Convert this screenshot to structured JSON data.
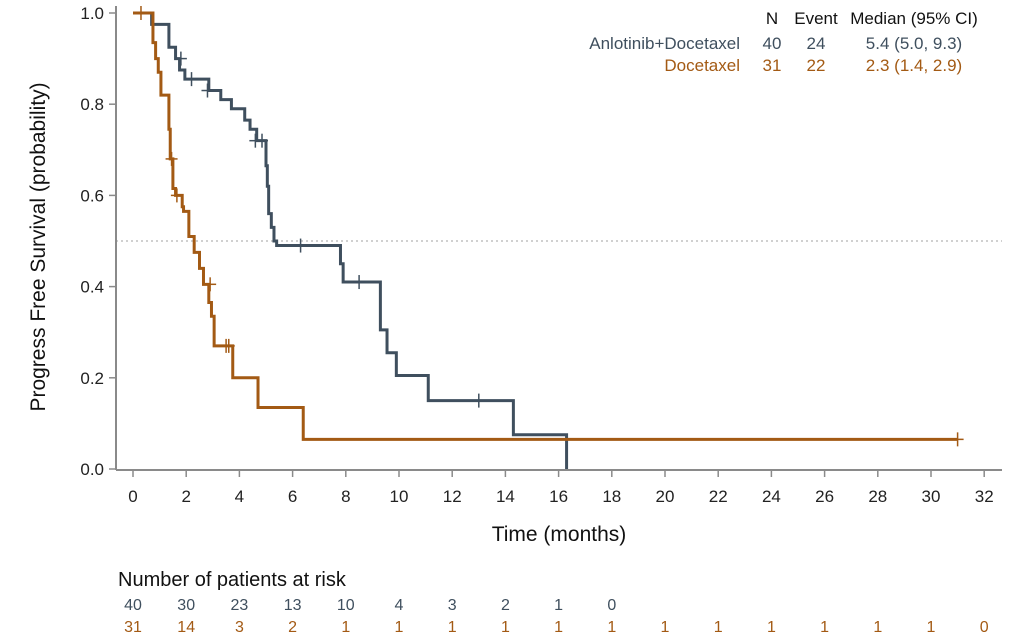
{
  "chart_data": {
    "type": "line",
    "subtype": "kaplan-meier",
    "title": "",
    "xlabel": "Time (months)",
    "ylabel": "Progress Free Survival (probability)",
    "xlim": [
      0,
      32
    ],
    "ylim": [
      0,
      1
    ],
    "xticks": [
      0,
      2,
      4,
      6,
      8,
      10,
      12,
      14,
      16,
      18,
      20,
      22,
      24,
      26,
      28,
      30,
      32
    ],
    "yticks": [
      0.0,
      0.2,
      0.4,
      0.6,
      0.8,
      1.0
    ],
    "ytick_labels": [
      "0.0",
      "0.2",
      "0.4",
      "0.6",
      "0.8",
      "1.0"
    ],
    "reference_line": {
      "y": 0.5,
      "style": "dotted"
    },
    "grid": false,
    "legend_table": {
      "position": "top-right",
      "headers": [
        "N",
        "Event",
        "Median (95% CI)"
      ],
      "rows": [
        {
          "name": "Anlotinib+Docetaxel",
          "n": "40",
          "event": "24",
          "median": "5.4 (5.0, 9.3)",
          "color": "#3f4f5e"
        },
        {
          "name": "Docetaxel",
          "n": "31",
          "event": "22",
          "median": "2.3 (1.4, 2.9)",
          "color": "#a35a14"
        }
      ]
    },
    "series": [
      {
        "name": "Anlotinib+Docetaxel",
        "color": "#3f4f5e",
        "steps": [
          [
            0,
            1.0
          ],
          [
            0.7,
            0.975
          ],
          [
            1.35,
            0.925
          ],
          [
            1.6,
            0.9
          ],
          [
            1.75,
            0.875
          ],
          [
            1.95,
            0.855
          ],
          [
            2.85,
            0.83
          ],
          [
            3.3,
            0.81
          ],
          [
            3.7,
            0.79
          ],
          [
            4.2,
            0.765
          ],
          [
            4.4,
            0.745
          ],
          [
            4.65,
            0.72
          ],
          [
            5.0,
            0.665
          ],
          [
            5.05,
            0.62
          ],
          [
            5.1,
            0.56
          ],
          [
            5.2,
            0.53
          ],
          [
            5.3,
            0.5
          ],
          [
            5.4,
            0.49
          ],
          [
            7.8,
            0.45
          ],
          [
            7.9,
            0.41
          ],
          [
            9.3,
            0.305
          ],
          [
            9.55,
            0.255
          ],
          [
            9.9,
            0.205
          ],
          [
            11.1,
            0.15
          ],
          [
            14.3,
            0.075
          ],
          [
            16.3,
            0.0
          ]
        ],
        "censored": [
          [
            1.8,
            0.9
          ],
          [
            2.2,
            0.855
          ],
          [
            2.8,
            0.83
          ],
          [
            4.6,
            0.72
          ],
          [
            4.85,
            0.72
          ],
          [
            6.3,
            0.49
          ],
          [
            8.5,
            0.41
          ],
          [
            13.0,
            0.15
          ]
        ]
      },
      {
        "name": "Docetaxel",
        "color": "#a35a14",
        "steps": [
          [
            0,
            1.0
          ],
          [
            0.75,
            0.935
          ],
          [
            0.85,
            0.9
          ],
          [
            0.95,
            0.87
          ],
          [
            1.05,
            0.82
          ],
          [
            1.35,
            0.745
          ],
          [
            1.4,
            0.68
          ],
          [
            1.5,
            0.615
          ],
          [
            1.6,
            0.6
          ],
          [
            1.85,
            0.575
          ],
          [
            1.9,
            0.565
          ],
          [
            2.1,
            0.51
          ],
          [
            2.3,
            0.475
          ],
          [
            2.5,
            0.44
          ],
          [
            2.65,
            0.405
          ],
          [
            2.85,
            0.365
          ],
          [
            2.95,
            0.335
          ],
          [
            3.05,
            0.27
          ],
          [
            3.75,
            0.2
          ],
          [
            4.7,
            0.135
          ],
          [
            6.4,
            0.065
          ],
          [
            31.0,
            0.065
          ]
        ],
        "censored": [
          [
            0.3,
            1.0
          ],
          [
            1.45,
            0.68
          ],
          [
            1.65,
            0.6
          ],
          [
            2.9,
            0.405
          ],
          [
            3.5,
            0.27
          ],
          [
            3.6,
            0.27
          ],
          [
            31.0,
            0.065
          ]
        ]
      }
    ],
    "risk_table": {
      "title": "Number of patients at risk",
      "times": [
        0,
        2,
        4,
        6,
        8,
        10,
        12,
        14,
        16,
        18,
        20,
        22,
        24,
        26,
        28,
        30,
        32
      ],
      "rows": [
        {
          "name": "Anlotinib+Docetaxel",
          "color": "#3f4f5e",
          "counts": [
            "40",
            "30",
            "23",
            "13",
            "10",
            "4",
            "3",
            "2",
            "1",
            "0"
          ]
        },
        {
          "name": "Docetaxel",
          "color": "#a35a14",
          "counts": [
            "31",
            "14",
            "3",
            "2",
            "1",
            "1",
            "1",
            "1",
            "1",
            "1",
            "1",
            "1",
            "1",
            "1",
            "1",
            "1",
            "0"
          ]
        }
      ]
    }
  }
}
